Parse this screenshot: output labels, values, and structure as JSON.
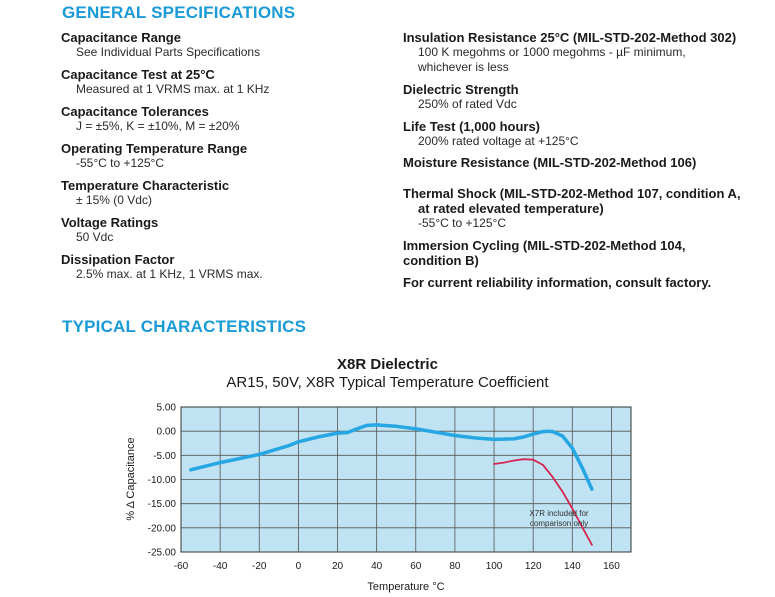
{
  "general": {
    "title": "GENERAL SPECIFICATIONS",
    "left": [
      {
        "label": "Capacitance Range",
        "values": [
          "See Individual Parts Specifications"
        ]
      },
      {
        "label": "Capacitance Test at 25°C",
        "values": [
          "Measured at 1 VRMS max. at 1 KHz"
        ]
      },
      {
        "label": "Capacitance Tolerances",
        "values": [
          "J = ±5%, K = ±10%, M = ±20%"
        ]
      },
      {
        "label": "Operating Temperature Range",
        "values": [
          "-55°C to +125°C"
        ]
      },
      {
        "label": "Temperature Characteristic",
        "values": [
          "± 15% (0 Vdc)"
        ]
      },
      {
        "label": "Voltage Ratings",
        "values": [
          "50 Vdc"
        ]
      },
      {
        "label": "Dissipation Factor",
        "values": [
          "2.5% max. at 1 KHz, 1 VRMS max."
        ]
      }
    ],
    "right": [
      {
        "label": "Insulation Resistance 25°C (MIL-STD-202-Method 302)",
        "values": [
          "100 K megohms or 1000 megohms - µF minimum,",
          "whichever is less"
        ]
      },
      {
        "label": "Dielectric Strength",
        "values": [
          "250% of rated Vdc"
        ]
      },
      {
        "label": "Life Test (1,000 hours)",
        "values": [
          "200% rated voltage at +125°C"
        ]
      },
      {
        "label": "Moisture Resistance (MIL-STD-202-Method 106)",
        "values": []
      },
      {
        "label": "Thermal Shock (MIL-STD-202-Method 107, condition A,",
        "label2": "at rated elevated temperature)",
        "values": [
          "-55°C to +125°C"
        ]
      },
      {
        "label": "Immersion Cycling (MIL-STD-202-Method 104,",
        "label_line2": "condition B)",
        "values": []
      },
      {
        "label": "For current reliability information, consult factory.",
        "values": []
      }
    ]
  },
  "typical": {
    "title": "TYPICAL CHARACTERISTICS"
  },
  "colors": {
    "accent": "#1a9ad6",
    "plot_bg": "#bfe3f3",
    "x8r_line": "#26a7e3",
    "x7r_line": "#d6264f"
  },
  "chart_data": {
    "type": "line",
    "title": "X8R Dielectric",
    "subtitle": "AR15, 50V, X8R Typical Temperature Coefficient",
    "xlabel": "Temperature °C",
    "ylabel": "% Δ Capacitance",
    "xlim": [
      -60,
      170
    ],
    "ylim": [
      -25,
      5
    ],
    "xticks": [
      "-60",
      "-40",
      "-20",
      "0",
      "20",
      "40",
      "60",
      "80",
      "100",
      "120",
      "140",
      "160"
    ],
    "xtick_values": [
      -60,
      -40,
      -20,
      0,
      20,
      40,
      60,
      80,
      100,
      120,
      140,
      160
    ],
    "yticks": [
      "5.00",
      "0.00",
      "-5.00",
      "-10.00",
      "-15.00",
      "-20.00",
      "-25.00"
    ],
    "ytick_values": [
      5,
      0,
      -5,
      -10,
      -15,
      -20,
      -25
    ],
    "grid": true,
    "annotation": [
      "X7R included for",
      "comparison only"
    ],
    "series": [
      {
        "color": "#26a7e3",
        "x": [
          -55,
          -40,
          -20,
          -5,
          0,
          10,
          20,
          25,
          30,
          35,
          40,
          50,
          60,
          70,
          80,
          90,
          100,
          110,
          115,
          120,
          125,
          128,
          130,
          135,
          140,
          145,
          150
        ],
        "y": [
          -8,
          -6.5,
          -4.8,
          -3,
          -2.2,
          -1.2,
          -0.4,
          -0.3,
          0.5,
          1.2,
          1.3,
          1,
          0.5,
          -0.2,
          -0.9,
          -1.4,
          -1.7,
          -1.6,
          -1.2,
          -0.6,
          -0.1,
          0,
          -0.1,
          -1,
          -3.5,
          -7.5,
          -12
        ]
      },
      {
        "color": "#d6264f",
        "x": [
          100,
          105,
          110,
          115,
          120,
          125,
          130,
          135,
          140,
          145,
          150
        ],
        "y": [
          -6.8,
          -6.5,
          -6.1,
          -5.8,
          -5.9,
          -7,
          -9.5,
          -12.5,
          -16,
          -19.8,
          -23.5
        ]
      }
    ]
  }
}
